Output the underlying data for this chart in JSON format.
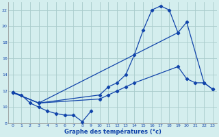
{
  "xlabel": "Graphe des températures (°c)",
  "background_color": "#d4eeee",
  "grid_color": "#aacccc",
  "line_color": "#1144aa",
  "xlim": [
    -0.5,
    23.5
  ],
  "ylim": [
    8,
    23
  ],
  "xticks": [
    0,
    1,
    2,
    3,
    4,
    5,
    6,
    7,
    8,
    9,
    10,
    11,
    12,
    13,
    14,
    15,
    16,
    17,
    18,
    19,
    20,
    21,
    22,
    23
  ],
  "yticks": [
    8,
    10,
    12,
    14,
    16,
    18,
    20,
    22
  ],
  "line1_x": [
    0,
    1,
    2,
    3,
    4,
    5,
    6,
    7,
    8,
    9
  ],
  "line1_y": [
    11.8,
    11.5,
    10.5,
    10.0,
    9.5,
    9.2,
    9.0,
    9.0,
    8.2,
    9.5
  ],
  "line2_x": [
    0,
    3,
    10,
    11,
    12,
    13,
    14,
    19,
    20,
    21,
    22,
    23
  ],
  "line2_y": [
    11.8,
    10.5,
    11.0,
    11.5,
    12.0,
    12.5,
    13.0,
    15.0,
    13.5,
    13.0,
    13.0,
    12.2
  ],
  "line3_x": [
    0,
    3,
    10,
    11,
    12,
    13,
    14,
    15,
    16,
    17,
    18,
    19
  ],
  "line3_y": [
    11.8,
    10.5,
    11.5,
    12.5,
    13.0,
    14.0,
    16.5,
    19.5,
    22.0,
    22.5,
    22.0,
    19.2
  ],
  "line4_x": [
    0,
    3,
    19,
    20,
    22,
    23
  ],
  "line4_y": [
    11.8,
    10.5,
    19.2,
    20.5,
    13.0,
    12.2
  ]
}
